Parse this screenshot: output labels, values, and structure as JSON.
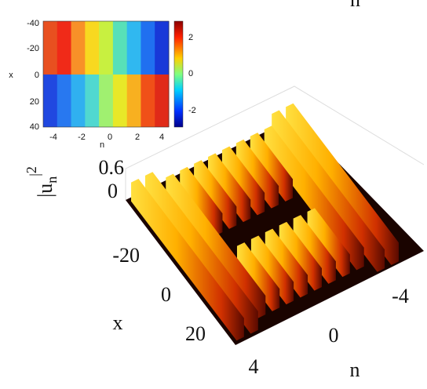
{
  "top_label": "n",
  "inset": {
    "y_ticks": [
      "-40",
      "-20",
      "0",
      "20",
      "40"
    ],
    "y_label": "x",
    "x_ticks": [
      "-4",
      "-2",
      "0",
      "2",
      "4"
    ],
    "x_label": "n",
    "colorbar_ticks": [
      "2",
      "0",
      "-2"
    ]
  },
  "main": {
    "z_label": "|u",
    "z_label_sub": "n",
    "z_label_sup": "2",
    "z_ticks": [
      "0.6",
      "0"
    ],
    "x_ticks": [
      "-20",
      "0",
      "20"
    ],
    "x_label": "x",
    "n_ticks": [
      "-4",
      "0",
      "4"
    ],
    "n_label": "n"
  }
}
